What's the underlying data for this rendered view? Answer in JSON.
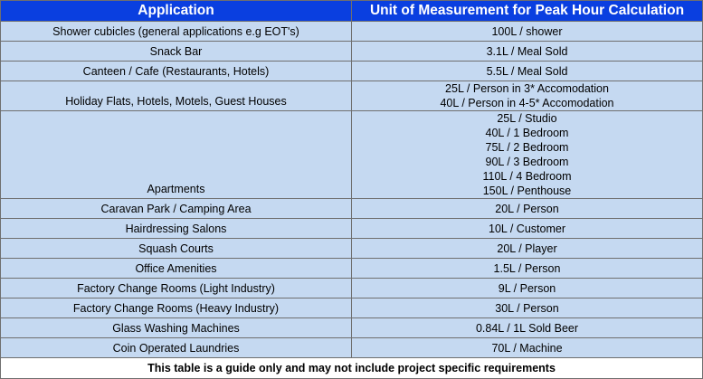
{
  "table": {
    "headers": {
      "application": "Application",
      "unit": "Unit of Measurement for Peak Hour Calculation"
    },
    "rows": [
      {
        "application": "Shower cubicles (general applications e.g EOT's)",
        "units": [
          "100L / shower"
        ]
      },
      {
        "application": "Snack Bar",
        "units": [
          "3.1L / Meal Sold"
        ]
      },
      {
        "application": "Canteen / Cafe (Restaurants, Hotels)",
        "units": [
          "5.5L / Meal Sold"
        ]
      },
      {
        "application": "Holiday Flats, Hotels, Motels, Guest Houses",
        "units": [
          "25L / Person in 3* Accomodation",
          "40L / Person in 4-5* Accomodation"
        ]
      },
      {
        "application": "Apartments",
        "units": [
          "25L / Studio",
          "40L / 1 Bedroom",
          "75L / 2 Bedroom",
          "90L / 3 Bedroom",
          "110L / 4 Bedroom",
          "150L / Penthouse"
        ]
      },
      {
        "application": "Caravan Park / Camping Area",
        "units": [
          "20L / Person"
        ]
      },
      {
        "application": "Hairdressing Salons",
        "units": [
          "10L / Customer"
        ]
      },
      {
        "application": "Squash Courts",
        "units": [
          "20L / Player"
        ]
      },
      {
        "application": "Office Amenities",
        "units": [
          "1.5L / Person"
        ]
      },
      {
        "application": "Factory Change Rooms (Light Industry)",
        "units": [
          "9L / Person"
        ]
      },
      {
        "application": "Factory Change Rooms (Heavy Industry)",
        "units": [
          "30L / Person"
        ]
      },
      {
        "application": "Glass Washing Machines",
        "units": [
          "0.84L / 1L Sold Beer"
        ]
      },
      {
        "application": "Coin Operated Laundries",
        "units": [
          "70L / Machine"
        ]
      }
    ],
    "footer_note": "This table is a guide only and may not include project specific requirements"
  },
  "colors": {
    "header_bg": "#0a3fe0",
    "header_text": "#ffffff",
    "row_bg": "#c5d9f1",
    "border": "#6f6f6f",
    "footer_bg": "#ffffff"
  }
}
